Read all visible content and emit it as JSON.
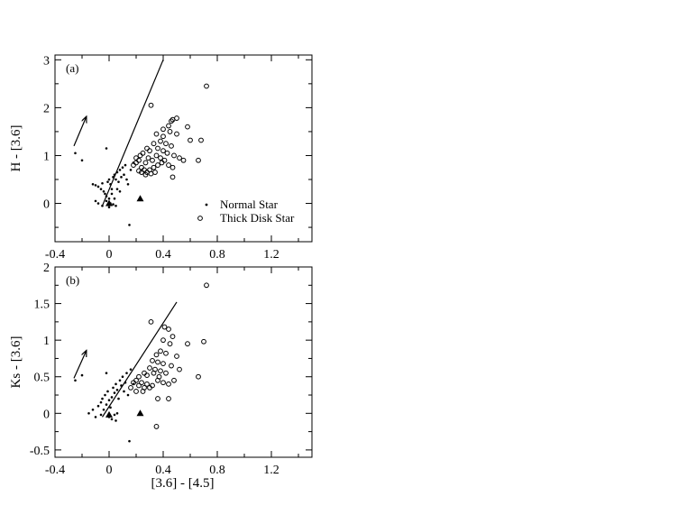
{
  "chart_data": [
    {
      "type": "scatter",
      "panel_label": "(a)",
      "xlabel": "",
      "ylabel": "H - [3.6]",
      "xlim": [
        -0.4,
        1.5
      ],
      "ylim": [
        -0.8,
        3.1
      ],
      "xticks": [
        -0.4,
        0,
        0.4,
        0.8,
        1.2
      ],
      "xtick_labels": [
        "-0.4",
        "0",
        "0.4",
        "0.8",
        "1.2"
      ],
      "yticks": [
        0,
        1,
        2,
        3
      ],
      "ytick_labels": [
        "0",
        "1",
        "2",
        "3"
      ],
      "grid": false,
      "legend": {
        "placement": "bottom-right",
        "entries": [
          {
            "label": "Normal Star",
            "marker": "dot"
          },
          {
            "label": "Thick Disk Star",
            "marker": "open-circle"
          }
        ]
      },
      "series": [
        {
          "name": "Normal Star",
          "marker": "dot",
          "points": [
            [
              -0.25,
              1.05
            ],
            [
              -0.2,
              0.9
            ],
            [
              -0.02,
              1.15
            ],
            [
              -0.12,
              0.4
            ],
            [
              -0.1,
              0.38
            ],
            [
              -0.08,
              0.35
            ],
            [
              -0.06,
              0.3
            ],
            [
              -0.05,
              0.42
            ],
            [
              -0.04,
              0.25
            ],
            [
              -0.03,
              0.2
            ],
            [
              -0.02,
              0.15
            ],
            [
              -0.01,
              0.45
            ],
            [
              0.0,
              0.5
            ],
            [
              0.01,
              0.4
            ],
            [
              0.02,
              0.3
            ],
            [
              0.03,
              0.55
            ],
            [
              0.04,
              0.6
            ],
            [
              0.05,
              0.5
            ],
            [
              0.06,
              0.65
            ],
            [
              0.07,
              0.45
            ],
            [
              0.08,
              0.7
            ],
            [
              0.09,
              0.55
            ],
            [
              0.1,
              0.75
            ],
            [
              0.11,
              0.6
            ],
            [
              0.12,
              0.8
            ],
            [
              0.13,
              0.5
            ],
            [
              0.14,
              0.4
            ],
            [
              0.02,
              0.2
            ],
            [
              0.0,
              0.1
            ],
            [
              -0.02,
              0.05
            ],
            [
              0.01,
              0.0
            ],
            [
              0.03,
              -0.02
            ],
            [
              0.05,
              -0.05
            ],
            [
              -0.05,
              -0.05
            ],
            [
              -0.08,
              0.0
            ],
            [
              -0.1,
              0.05
            ],
            [
              0.0,
              -0.08
            ],
            [
              0.04,
              0.1
            ],
            [
              0.06,
              0.3
            ],
            [
              0.08,
              0.25
            ],
            [
              0.15,
              -0.45
            ],
            [
              0.18,
              0.85
            ],
            [
              0.16,
              0.7
            ]
          ]
        },
        {
          "name": "Thick Disk Star",
          "marker": "open-circle",
          "points": [
            [
              0.72,
              2.45
            ],
            [
              0.31,
              2.05
            ],
            [
              0.47,
              1.75
            ],
            [
              0.5,
              1.78
            ],
            [
              0.46,
              1.72
            ],
            [
              0.58,
              1.6
            ],
            [
              0.44,
              1.62
            ],
            [
              0.4,
              1.55
            ],
            [
              0.35,
              1.45
            ],
            [
              0.4,
              1.4
            ],
            [
              0.45,
              1.5
            ],
            [
              0.5,
              1.45
            ],
            [
              0.6,
              1.32
            ],
            [
              0.68,
              1.32
            ],
            [
              0.38,
              1.3
            ],
            [
              0.42,
              1.25
            ],
            [
              0.46,
              1.2
            ],
            [
              0.33,
              1.25
            ],
            [
              0.36,
              1.15
            ],
            [
              0.3,
              1.1
            ],
            [
              0.25,
              1.05
            ],
            [
              0.28,
              1.15
            ],
            [
              0.4,
              1.1
            ],
            [
              0.43,
              1.05
            ],
            [
              0.48,
              1.0
            ],
            [
              0.52,
              0.95
            ],
            [
              0.55,
              0.9
            ],
            [
              0.35,
              1.0
            ],
            [
              0.38,
              0.95
            ],
            [
              0.32,
              0.9
            ],
            [
              0.27,
              0.85
            ],
            [
              0.22,
              0.9
            ],
            [
              0.2,
              0.85
            ],
            [
              0.18,
              0.8
            ],
            [
              0.24,
              0.75
            ],
            [
              0.26,
              0.7
            ],
            [
              0.28,
              0.65
            ],
            [
              0.3,
              0.7
            ],
            [
              0.33,
              0.75
            ],
            [
              0.36,
              0.8
            ],
            [
              0.39,
              0.85
            ],
            [
              0.41,
              0.9
            ],
            [
              0.44,
              0.8
            ],
            [
              0.47,
              0.75
            ],
            [
              0.66,
              0.9
            ],
            [
              0.47,
              0.55
            ],
            [
              0.22,
              0.68
            ],
            [
              0.24,
              0.65
            ],
            [
              0.27,
              0.6
            ],
            [
              0.31,
              0.62
            ],
            [
              0.34,
              0.65
            ],
            [
              0.2,
              0.95
            ],
            [
              0.23,
              1.0
            ],
            [
              0.29,
              0.95
            ]
          ]
        },
        {
          "name": "",
          "marker": "filled-triangle",
          "points": [
            [
              0.0,
              0.0
            ],
            [
              0.23,
              0.1
            ]
          ]
        }
      ],
      "annotations": {
        "line": {
          "x": [
            -0.05,
            0.4
          ],
          "y": [
            -0.05,
            3.0
          ]
        },
        "arrow": {
          "from": [
            -0.26,
            1.2
          ],
          "to": [
            -0.17,
            1.8
          ]
        }
      }
    },
    {
      "type": "scatter",
      "panel_label": "(b)",
      "xlabel": "[3.6] - [4.5]",
      "ylabel": "Ks - [3.6]",
      "xlim": [
        -0.4,
        1.5
      ],
      "ylim": [
        -0.6,
        2.0
      ],
      "xticks": [
        -0.4,
        0,
        0.4,
        0.8,
        1.2
      ],
      "xtick_labels": [
        "-0.4",
        "0",
        "0.4",
        "0.8",
        "1.2"
      ],
      "yticks": [
        -0.5,
        0,
        0.5,
        1,
        1.5,
        2
      ],
      "ytick_labels": [
        "-0.5",
        "0",
        "0.5",
        "1",
        "1.5",
        "2"
      ],
      "grid": false,
      "series": [
        {
          "name": "Normal Star",
          "marker": "dot",
          "points": [
            [
              -0.25,
              0.45
            ],
            [
              -0.2,
              0.52
            ],
            [
              -0.02,
              0.55
            ],
            [
              -0.15,
              0.0
            ],
            [
              -0.12,
              0.05
            ],
            [
              -0.1,
              -0.05
            ],
            [
              -0.08,
              0.1
            ],
            [
              -0.06,
              0.15
            ],
            [
              -0.05,
              0.2
            ],
            [
              -0.04,
              0.05
            ],
            [
              -0.03,
              0.25
            ],
            [
              -0.02,
              0.12
            ],
            [
              -0.01,
              0.3
            ],
            [
              0.0,
              0.18
            ],
            [
              0.01,
              0.08
            ],
            [
              0.02,
              0.22
            ],
            [
              0.03,
              0.35
            ],
            [
              0.04,
              0.28
            ],
            [
              0.05,
              0.4
            ],
            [
              0.06,
              0.32
            ],
            [
              0.07,
              0.2
            ],
            [
              0.08,
              0.45
            ],
            [
              0.09,
              0.38
            ],
            [
              0.1,
              0.5
            ],
            [
              0.11,
              0.3
            ],
            [
              0.12,
              0.42
            ],
            [
              0.13,
              0.55
            ],
            [
              0.14,
              0.25
            ],
            [
              0.0,
              -0.05
            ],
            [
              0.02,
              -0.08
            ],
            [
              0.04,
              -0.02
            ],
            [
              0.06,
              0.0
            ],
            [
              -0.06,
              -0.02
            ],
            [
              0.05,
              -0.1
            ],
            [
              0.15,
              -0.38
            ],
            [
              0.16,
              0.6
            ],
            [
              0.18,
              0.4
            ]
          ]
        },
        {
          "name": "Thick Disk Star",
          "marker": "open-circle",
          "points": [
            [
              0.72,
              1.75
            ],
            [
              0.31,
              1.25
            ],
            [
              0.41,
              1.18
            ],
            [
              0.44,
              1.15
            ],
            [
              0.47,
              1.05
            ],
            [
              0.4,
              1.0
            ],
            [
              0.45,
              0.95
            ],
            [
              0.58,
              0.95
            ],
            [
              0.7,
              0.98
            ],
            [
              0.38,
              0.85
            ],
            [
              0.35,
              0.8
            ],
            [
              0.42,
              0.82
            ],
            [
              0.5,
              0.78
            ],
            [
              0.32,
              0.72
            ],
            [
              0.36,
              0.7
            ],
            [
              0.4,
              0.68
            ],
            [
              0.46,
              0.65
            ],
            [
              0.52,
              0.6
            ],
            [
              0.3,
              0.62
            ],
            [
              0.34,
              0.6
            ],
            [
              0.38,
              0.58
            ],
            [
              0.42,
              0.55
            ],
            [
              0.26,
              0.55
            ],
            [
              0.22,
              0.5
            ],
            [
              0.2,
              0.45
            ],
            [
              0.24,
              0.42
            ],
            [
              0.28,
              0.4
            ],
            [
              0.32,
              0.38
            ],
            [
              0.3,
              0.35
            ],
            [
              0.26,
              0.35
            ],
            [
              0.22,
              0.38
            ],
            [
              0.18,
              0.42
            ],
            [
              0.16,
              0.35
            ],
            [
              0.2,
              0.3
            ],
            [
              0.25,
              0.3
            ],
            [
              0.36,
              0.45
            ],
            [
              0.4,
              0.42
            ],
            [
              0.44,
              0.4
            ],
            [
              0.48,
              0.45
            ],
            [
              0.66,
              0.5
            ],
            [
              0.44,
              0.2
            ],
            [
              0.36,
              0.2
            ],
            [
              0.35,
              -0.18
            ],
            [
              0.28,
              0.52
            ],
            [
              0.33,
              0.55
            ],
            [
              0.37,
              0.5
            ]
          ]
        },
        {
          "name": "",
          "marker": "filled-triangle",
          "points": [
            [
              0.0,
              -0.02
            ],
            [
              0.23,
              0.0
            ]
          ]
        }
      ],
      "annotations": {
        "line": {
          "x": [
            -0.05,
            0.5
          ],
          "y": [
            -0.05,
            1.52
          ]
        },
        "arrow": {
          "from": [
            -0.26,
            0.48
          ],
          "to": [
            -0.17,
            0.85
          ]
        }
      }
    }
  ]
}
